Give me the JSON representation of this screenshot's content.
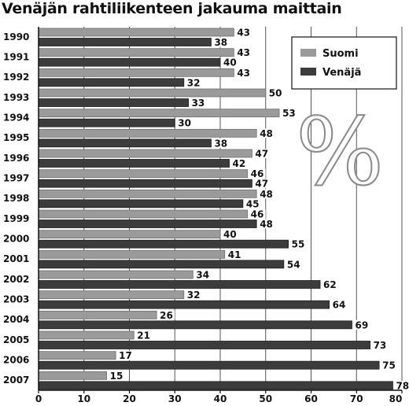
{
  "chart_data": {
    "type": "bar",
    "orientation": "horizontal",
    "title": "Venäjän rahtiliikenteen jakauma maittain",
    "categories": [
      "1990",
      "1991",
      "1992",
      "1993",
      "1994",
      "1995",
      "1996",
      "1997",
      "1998",
      "1999",
      "2000",
      "2001",
      "2002",
      "2003",
      "2004",
      "2005",
      "2006",
      "2007"
    ],
    "series": [
      {
        "name": "Suomi",
        "color": "#9a9a9a",
        "values": [
          43,
          43,
          43,
          50,
          53,
          48,
          47,
          46,
          48,
          46,
          40,
          41,
          34,
          32,
          26,
          21,
          17,
          15
        ]
      },
      {
        "name": "Venäjä",
        "color": "#3c3c3c",
        "values": [
          38,
          40,
          32,
          33,
          30,
          38,
          42,
          47,
          45,
          48,
          55,
          54,
          62,
          64,
          69,
          73,
          75,
          78
        ]
      }
    ],
    "xlim": [
      0,
      80
    ],
    "xticks": [
      0,
      10,
      20,
      30,
      40,
      50,
      60,
      70,
      80
    ],
    "grid": true,
    "legend_position": "top-right",
    "decoration_glyph": "%"
  }
}
